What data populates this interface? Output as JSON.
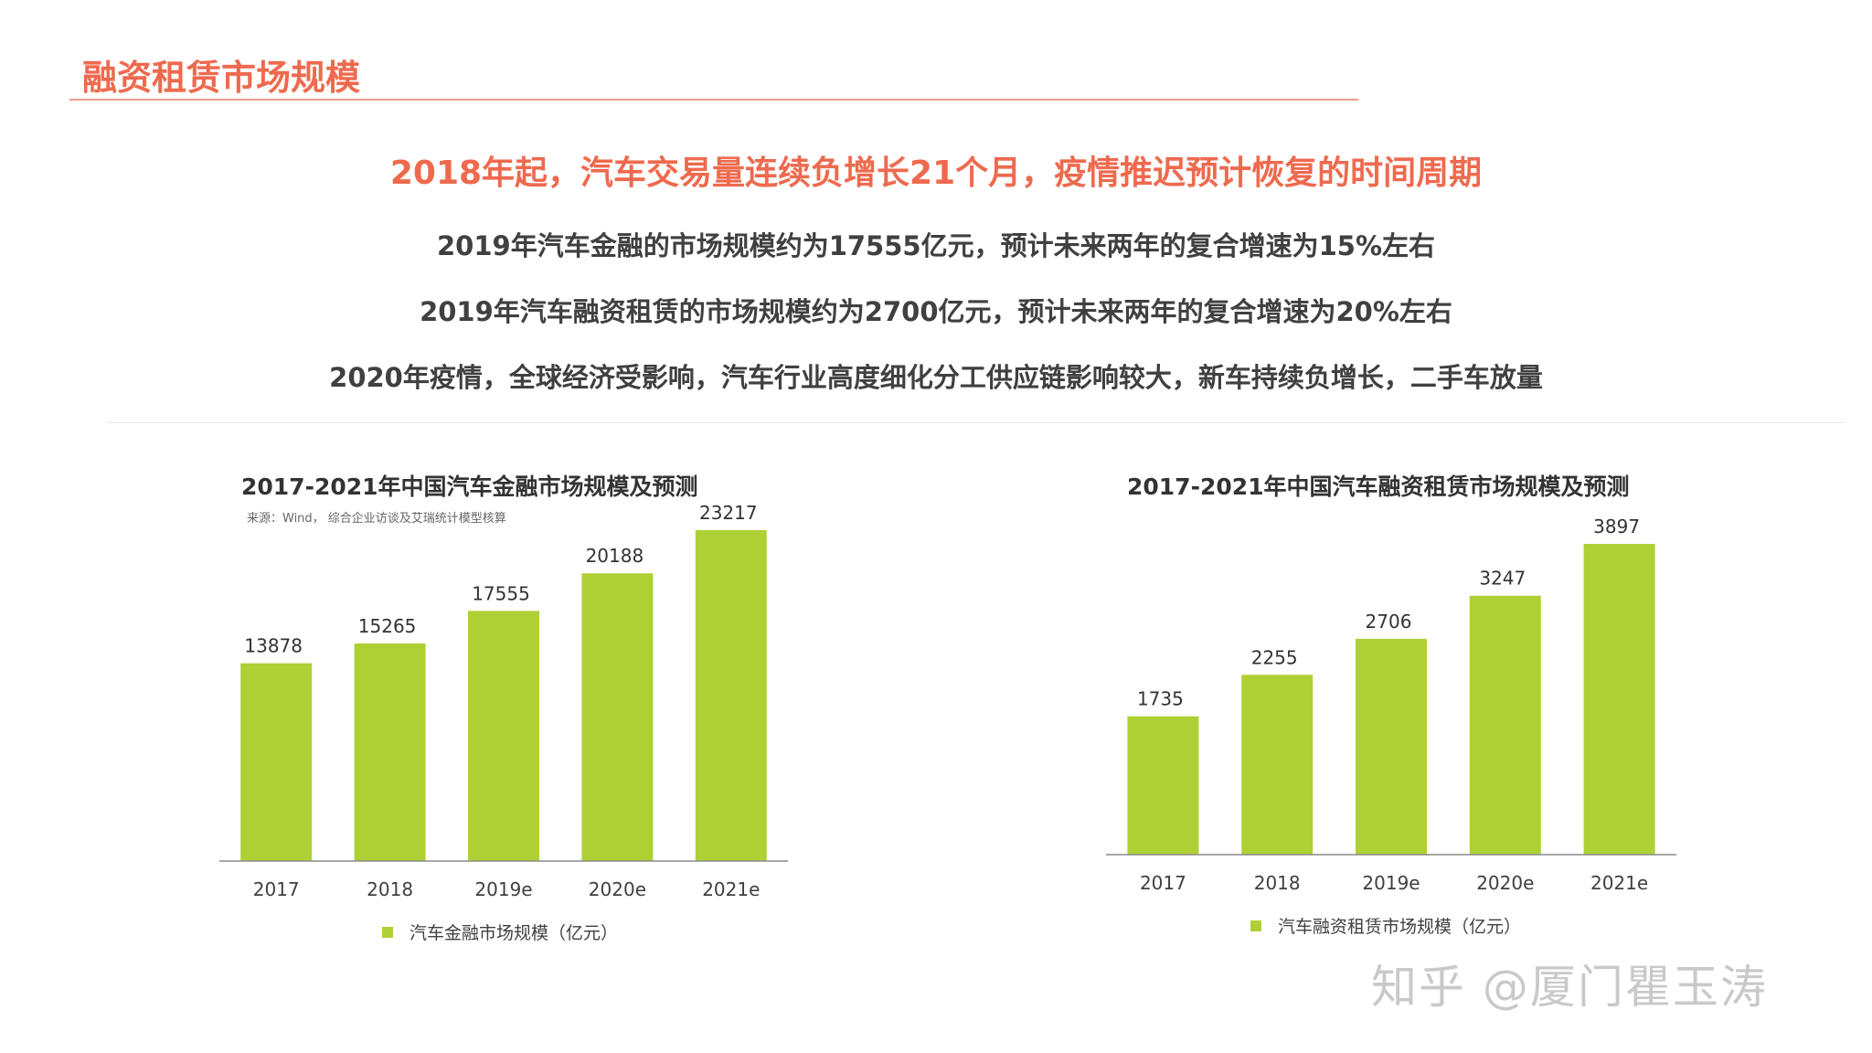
{
  "page": {
    "title": "融资租赁市场规模",
    "headline": "2018年起，汽车交易量连续负增长21个月，疫情推迟预计恢复的时间周期",
    "bullets": [
      "2019年汽车金融的市场规模约为17555亿元，预计未来两年的复合增速为15%左右",
      "2019年汽车融资租赁的市场规模约为2700亿元，预计未来两年的复合增速为20%左右",
      "2020年疫情，全球经济受影响，汽车行业高度细化分工供应链影响较大，新车持续负增长，二手车放量"
    ],
    "watermark": "知乎 @厦门瞿玉涛"
  },
  "colors": {
    "accent": "#ee6a4e",
    "bar": "#afd035",
    "axis": "#8c8c8c"
  },
  "chart_data": [
    {
      "type": "bar",
      "title": "2017-2021年中国汽车金融市场规模及预测",
      "source": "来源：Wind， 综合企业访谈及艾瑞统计模型核算",
      "categories": [
        "2017",
        "2018",
        "2019e",
        "2020e",
        "2021e"
      ],
      "series": [
        {
          "name": "汽车金融市场规模（亿元）",
          "values": [
            13878,
            15265,
            17555,
            20188,
            23217
          ]
        }
      ],
      "legend": "bottom-center",
      "grid": false
    },
    {
      "type": "bar",
      "title": "2017-2021年中国汽车融资租赁市场规模及预测",
      "categories": [
        "2017",
        "2018",
        "2019e",
        "2020e",
        "2021e"
      ],
      "series": [
        {
          "name": "汽车融资租赁市场规模（亿元）",
          "values": [
            1735,
            2255,
            2706,
            3247,
            3897
          ]
        }
      ],
      "legend": "bottom-center",
      "grid": false
    }
  ]
}
